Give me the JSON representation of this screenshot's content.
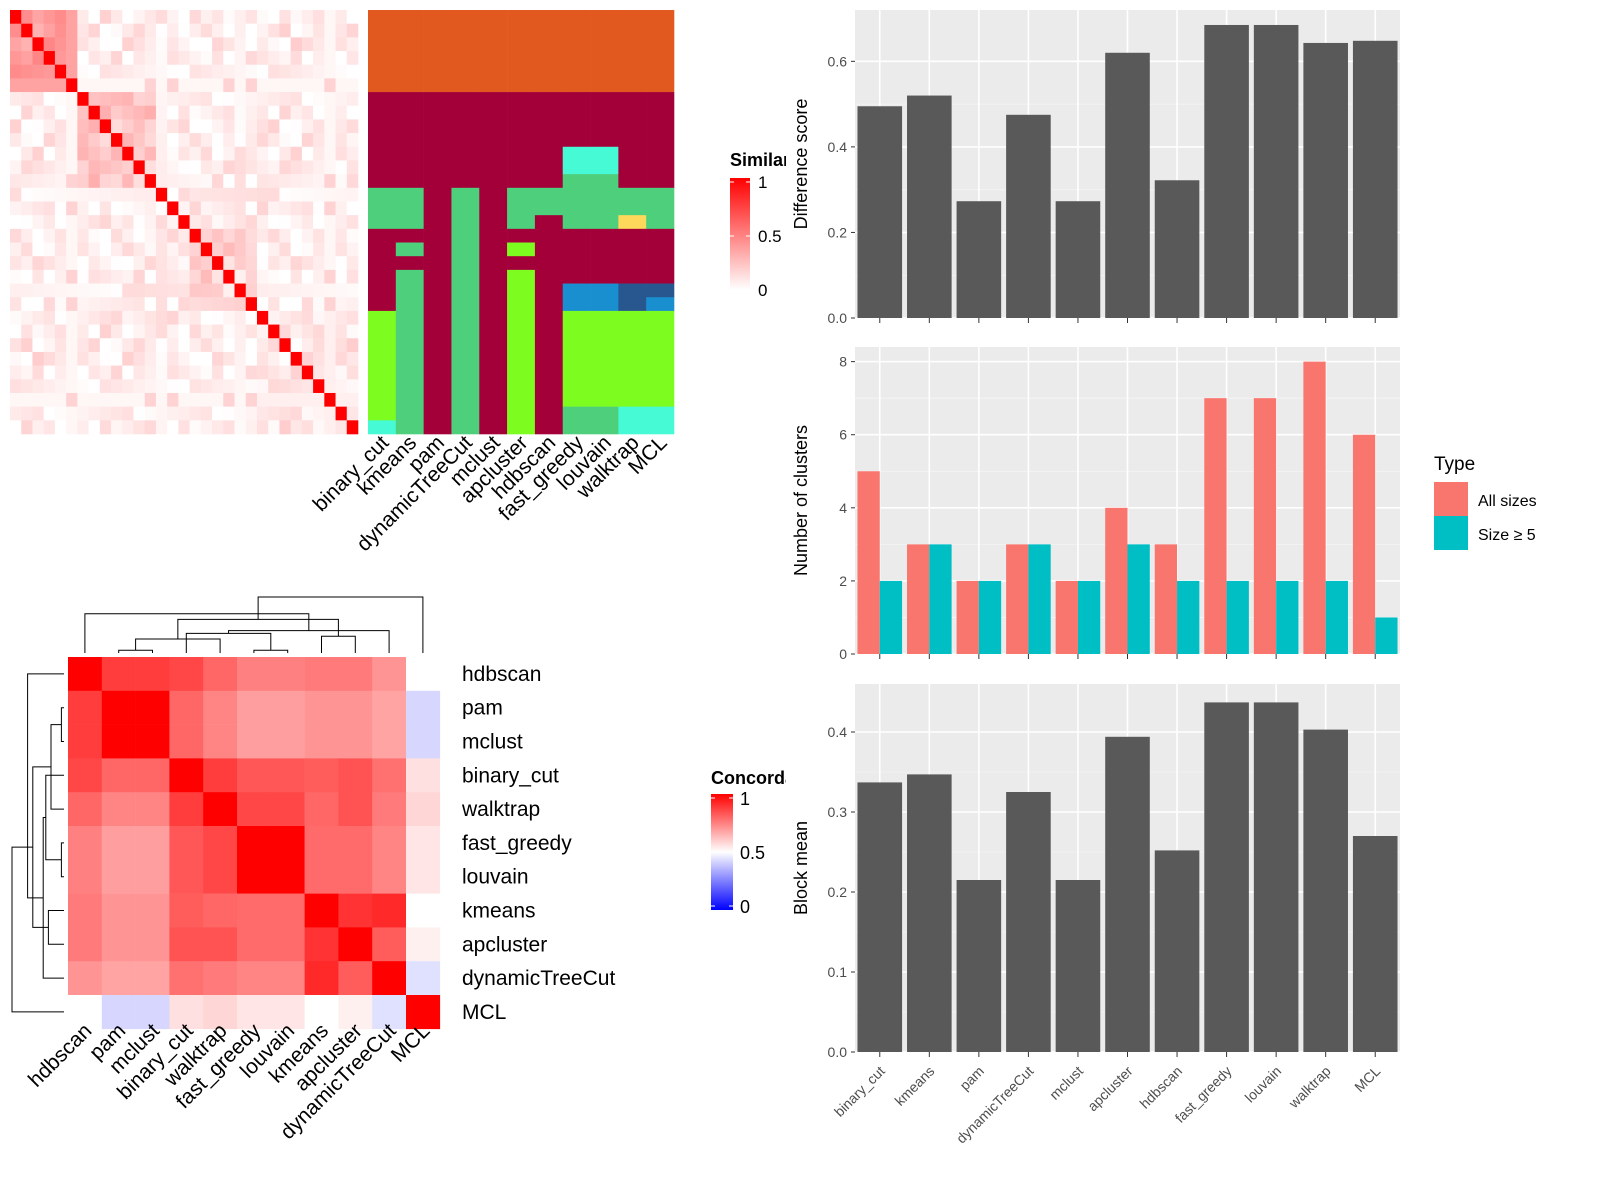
{
  "methods": [
    "binary_cut",
    "kmeans",
    "pam",
    "dynamicTreeCut",
    "mclust",
    "apcluster",
    "hdbscan",
    "fast_greedy",
    "louvain",
    "walktrap",
    "MCL"
  ],
  "similarity_legend": {
    "title": "Similarity",
    "ticks": [
      "1",
      "0.5",
      "0"
    ]
  },
  "concordance_legend": {
    "title": "Concordance",
    "ticks": [
      "1",
      "0.5",
      "0"
    ]
  },
  "colors": {
    "heat_high": "#ff0000",
    "heat_low": "#ffffff",
    "conc_low": "#0000ff",
    "conc_mid": "#ffffff",
    "panel_bg": "#ebebeb",
    "bar_gray": "#595959",
    "all_sizes": "#f8766d",
    "size_ge5": "#00bfc4"
  },
  "similarity_heatmap": {
    "size": 31,
    "blocks": [
      [
        0,
        5
      ],
      [
        6,
        12
      ],
      [
        13,
        15
      ],
      [
        16,
        21
      ],
      [
        22,
        30
      ]
    ],
    "block_levels": [
      0.38,
      0.22,
      0.1,
      0.16,
      0.08
    ],
    "off_level": 0.05
  },
  "cluster_grid": {
    "rows": 31,
    "palette": [
      "#e2591f",
      "#a3003a",
      "#4ecf7b",
      "#45fad4",
      "#7cfc1f",
      "#1a8fd0",
      "#27578e",
      "#fdd85a"
    ],
    "columns": [
      [
        [
          0,
          5,
          0
        ],
        [
          6,
          12,
          1
        ],
        [
          13,
          15,
          2
        ],
        [
          16,
          21,
          1
        ],
        [
          22,
          29,
          4
        ],
        [
          30,
          30,
          3
        ]
      ],
      [
        [
          0,
          5,
          0
        ],
        [
          6,
          12,
          1
        ],
        [
          13,
          15,
          2
        ],
        [
          16,
          16,
          1
        ],
        [
          17,
          17,
          2
        ],
        [
          18,
          18,
          1
        ],
        [
          19,
          30,
          2
        ]
      ],
      [
        [
          0,
          5,
          0
        ],
        [
          6,
          30,
          1
        ]
      ],
      [
        [
          0,
          5,
          0
        ],
        [
          6,
          12,
          1
        ],
        [
          13,
          30,
          2
        ]
      ],
      [
        [
          0,
          5,
          0
        ],
        [
          6,
          30,
          1
        ]
      ],
      [
        [
          0,
          5,
          0
        ],
        [
          6,
          12,
          1
        ],
        [
          13,
          15,
          2
        ],
        [
          16,
          16,
          1
        ],
        [
          17,
          17,
          4
        ],
        [
          18,
          18,
          1
        ],
        [
          19,
          30,
          4
        ]
      ],
      [
        [
          0,
          5,
          0
        ],
        [
          6,
          12,
          1
        ],
        [
          13,
          14,
          2
        ],
        [
          15,
          30,
          1
        ]
      ],
      [
        [
          0,
          5,
          0
        ],
        [
          6,
          9,
          1
        ],
        [
          10,
          11,
          3
        ],
        [
          12,
          15,
          2
        ],
        [
          16,
          19,
          1
        ],
        [
          20,
          21,
          5
        ],
        [
          22,
          28,
          4
        ],
        [
          29,
          30,
          2
        ]
      ],
      [
        [
          0,
          5,
          0
        ],
        [
          6,
          9,
          1
        ],
        [
          10,
          11,
          3
        ],
        [
          12,
          15,
          2
        ],
        [
          16,
          19,
          1
        ],
        [
          20,
          21,
          5
        ],
        [
          22,
          28,
          4
        ],
        [
          29,
          30,
          2
        ]
      ],
      [
        [
          0,
          5,
          0
        ],
        [
          6,
          12,
          1
        ],
        [
          13,
          14,
          2
        ],
        [
          15,
          15,
          7
        ],
        [
          16,
          19,
          1
        ],
        [
          20,
          20,
          6
        ],
        [
          21,
          21,
          6
        ],
        [
          22,
          28,
          4
        ],
        [
          29,
          30,
          3
        ]
      ],
      [
        [
          0,
          5,
          0
        ],
        [
          6,
          12,
          1
        ],
        [
          13,
          14,
          2
        ],
        [
          15,
          15,
          2
        ],
        [
          16,
          19,
          1
        ],
        [
          20,
          20,
          6
        ],
        [
          21,
          21,
          5
        ],
        [
          22,
          28,
          4
        ],
        [
          29,
          30,
          3
        ]
      ]
    ]
  },
  "concordance": {
    "order": [
      "hdbscan",
      "pam",
      "mclust",
      "binary_cut",
      "walktrap",
      "fast_greedy",
      "louvain",
      "kmeans",
      "apcluster",
      "dynamicTreeCut",
      "MCL"
    ],
    "matrix": [
      [
        1.0,
        0.88,
        0.88,
        0.86,
        0.8,
        0.75,
        0.75,
        0.76,
        0.76,
        0.71,
        0.5
      ],
      [
        0.88,
        1.0,
        1.0,
        0.8,
        0.74,
        0.69,
        0.69,
        0.71,
        0.71,
        0.68,
        0.42
      ],
      [
        0.88,
        1.0,
        1.0,
        0.8,
        0.74,
        0.69,
        0.69,
        0.71,
        0.71,
        0.68,
        0.42
      ],
      [
        0.86,
        0.8,
        0.8,
        1.0,
        0.88,
        0.83,
        0.83,
        0.82,
        0.84,
        0.78,
        0.56
      ],
      [
        0.8,
        0.74,
        0.74,
        0.88,
        1.0,
        0.86,
        0.86,
        0.8,
        0.84,
        0.76,
        0.58
      ],
      [
        0.75,
        0.69,
        0.69,
        0.83,
        0.86,
        1.0,
        1.0,
        0.79,
        0.79,
        0.74,
        0.55
      ],
      [
        0.75,
        0.69,
        0.69,
        0.83,
        0.86,
        1.0,
        1.0,
        0.79,
        0.79,
        0.74,
        0.55
      ],
      [
        0.76,
        0.71,
        0.71,
        0.82,
        0.8,
        0.79,
        0.79,
        1.0,
        0.9,
        0.92,
        0.5
      ],
      [
        0.76,
        0.71,
        0.71,
        0.84,
        0.84,
        0.79,
        0.79,
        0.9,
        1.0,
        0.82,
        0.53
      ],
      [
        0.71,
        0.68,
        0.68,
        0.78,
        0.76,
        0.74,
        0.74,
        0.92,
        0.82,
        1.0,
        0.44
      ],
      [
        0.5,
        0.42,
        0.42,
        0.56,
        0.58,
        0.55,
        0.55,
        0.5,
        0.53,
        0.44,
        1.0
      ]
    ]
  },
  "chart_data": [
    {
      "type": "bar",
      "ylabel": "Difference score",
      "categories": [
        "binary_cut",
        "kmeans",
        "pam",
        "dynamicTreeCut",
        "mclust",
        "apcluster",
        "hdbscan",
        "fast_greedy",
        "louvain",
        "walktrap",
        "MCL"
      ],
      "values": [
        0.495,
        0.52,
        0.273,
        0.475,
        0.273,
        0.62,
        0.322,
        0.685,
        0.685,
        0.643,
        0.648
      ],
      "ylim": [
        0,
        0.72
      ],
      "ticks": [
        0.0,
        0.2,
        0.4,
        0.6
      ],
      "tick_labels": [
        "0.0",
        "0.2",
        "0.4",
        "0.6"
      ]
    },
    {
      "type": "bar",
      "ylabel": "Number of clusters",
      "categories": [
        "binary_cut",
        "kmeans",
        "pam",
        "dynamicTreeCut",
        "mclust",
        "apcluster",
        "hdbscan",
        "fast_greedy",
        "louvain",
        "walktrap",
        "MCL"
      ],
      "series": [
        {
          "name": "All sizes",
          "values": [
            5,
            3,
            2,
            3,
            2,
            4,
            3,
            7,
            7,
            8,
            6
          ]
        },
        {
          "name": "Size ≥ 5",
          "values": [
            2,
            3,
            2,
            3,
            2,
            3,
            2,
            2,
            2,
            2,
            1
          ]
        }
      ],
      "ylim": [
        0,
        8.4
      ],
      "ticks": [
        0,
        2,
        4,
        6,
        8
      ],
      "tick_labels": [
        "0",
        "2",
        "4",
        "6",
        "8"
      ],
      "legend": {
        "title": "Type",
        "position": "right"
      }
    },
    {
      "type": "bar",
      "ylabel": "Block mean",
      "categories": [
        "binary_cut",
        "kmeans",
        "pam",
        "dynamicTreeCut",
        "mclust",
        "apcluster",
        "hdbscan",
        "fast_greedy",
        "louvain",
        "walktrap",
        "MCL"
      ],
      "values": [
        0.337,
        0.347,
        0.215,
        0.325,
        0.215,
        0.394,
        0.252,
        0.437,
        0.437,
        0.403,
        0.27
      ],
      "ylim": [
        0,
        0.46
      ],
      "ticks": [
        0.0,
        0.1,
        0.2,
        0.3,
        0.4
      ],
      "tick_labels": [
        "0.0",
        "0.1",
        "0.2",
        "0.3",
        "0.4"
      ]
    }
  ]
}
